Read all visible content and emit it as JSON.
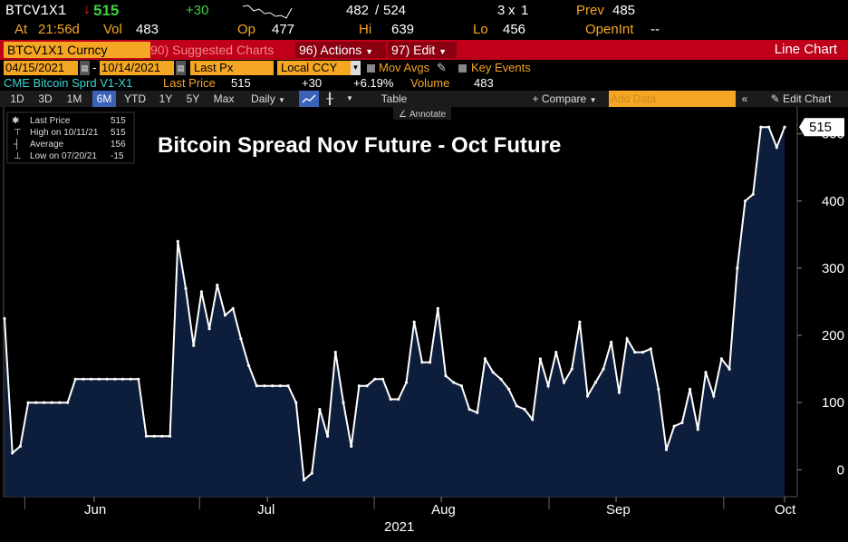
{
  "header": {
    "ticker": "BTCV1X1",
    "last": "515",
    "change": "+30",
    "open_label": "482",
    "open_sep": "/",
    "open_value": "524",
    "size": "3",
    "size_sep": "x",
    "size2": "1",
    "prev_label": "Prev",
    "prev_value": "485",
    "time_label": "At",
    "time": "21:56d",
    "vol_label": "Vol",
    "vol": "483",
    "op_label": "Op",
    "op": "477",
    "hi_label": "Hi",
    "hi": "639",
    "lo_label": "Lo",
    "lo": "456",
    "openint_label": "OpenInt",
    "openint": "--"
  },
  "toolbar": {
    "security": "BTCV1X1 Curncy",
    "suggested": "90) Suggested Charts",
    "actions": "96) Actions",
    "edit": "97) Edit",
    "chart_type": "Line Chart"
  },
  "controls": {
    "start_date": "04/15/2021",
    "end_date": "10/14/2021",
    "field": "Last Px",
    "currency": "Local CCY",
    "mov_avgs": "Mov Avgs",
    "key_events": "Key Events",
    "series_name": "CME Bitcoin Sprd  V1-X1",
    "last_price_label": "Last Price",
    "last_price": "515",
    "change": "+30",
    "pct_change": "+6.19%",
    "volume_label": "Volume",
    "volume": "483"
  },
  "tabs": {
    "periods": [
      "1D",
      "3D",
      "1M",
      "6M",
      "YTD",
      "1Y",
      "5Y",
      "Max"
    ],
    "active": "6M",
    "freq": "Daily",
    "table": "Table",
    "compare": "Compare",
    "add_data": "Add Data",
    "edit_chart": "Edit Chart",
    "annotate": "Annotate"
  },
  "legend": {
    "last_label": "Last Price",
    "last_value": "515",
    "high_label": "High on 10/11/21",
    "high_value": "515",
    "avg_label": "Average",
    "avg_value": "156",
    "low_label": "Low on 07/20/21",
    "low_value": "-15"
  },
  "chart_data": {
    "type": "area",
    "title": "Bitcoin Spread Nov Future - Oct Future",
    "xlabel": "2021",
    "x_tick_labels": [
      "Jun",
      "Jul",
      "Aug",
      "Sep",
      "Oct"
    ],
    "y_ticks": [
      0,
      100,
      200,
      300,
      400,
      500
    ],
    "ylim": [
      -40,
      540
    ],
    "last_value_label": "515",
    "values": [
      225,
      25,
      35,
      100,
      100,
      100,
      100,
      100,
      100,
      135,
      135,
      135,
      135,
      135,
      135,
      135,
      135,
      135,
      50,
      50,
      50,
      50,
      340,
      270,
      185,
      265,
      210,
      275,
      230,
      240,
      195,
      155,
      125,
      125,
      125,
      125,
      125,
      100,
      -15,
      -5,
      90,
      50,
      175,
      100,
      35,
      125,
      125,
      135,
      135,
      105,
      105,
      130,
      220,
      160,
      160,
      240,
      140,
      130,
      125,
      90,
      85,
      165,
      145,
      135,
      120,
      95,
      90,
      75,
      165,
      125,
      175,
      130,
      150,
      220,
      110,
      130,
      150,
      190,
      115,
      195,
      175,
      175,
      180,
      120,
      30,
      65,
      70,
      120,
      60,
      145,
      110,
      165,
      150,
      300,
      400,
      410,
      510,
      510,
      480,
      510
    ]
  }
}
